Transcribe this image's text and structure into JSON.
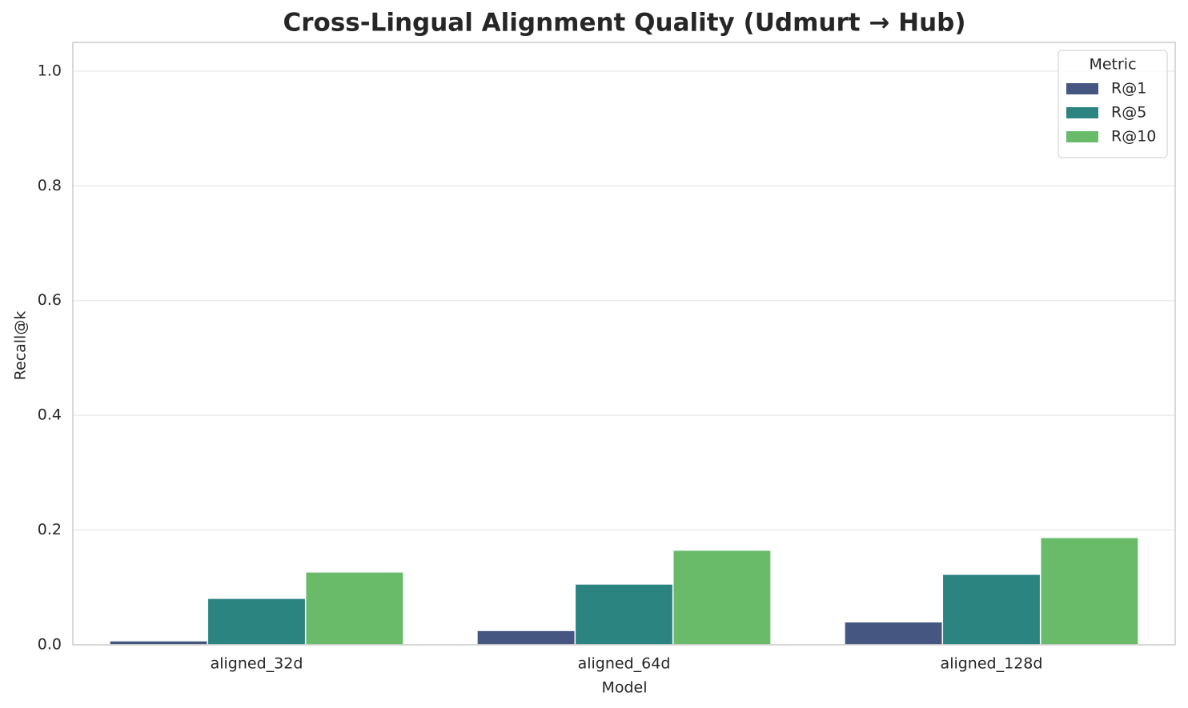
{
  "chart_data": {
    "type": "bar",
    "title": "Cross-Lingual Alignment Quality (Udmurt → Hub)",
    "x_label": "Model",
    "y_label": "Recall@k",
    "categories": [
      "aligned_32d",
      "aligned_64d",
      "aligned_128d"
    ],
    "series": [
      {
        "name": "R@1",
        "color": "#455681",
        "values": [
          0.007,
          0.025,
          0.04
        ]
      },
      {
        "name": "R@5",
        "color": "#2c8481",
        "values": [
          0.081,
          0.106,
          0.123
        ]
      },
      {
        "name": "R@10",
        "color": "#69bb6a",
        "values": [
          0.127,
          0.165,
          0.187
        ]
      }
    ],
    "legend_title": "Metric",
    "legend_position": "upper right",
    "ylim": [
      0,
      1.05
    ],
    "yticks": [
      {
        "value": 0,
        "label": "0.0"
      },
      {
        "value": 0.2,
        "label": "0.2"
      },
      {
        "value": 0.4,
        "label": "0.4"
      },
      {
        "value": 0.6,
        "label": "0.6"
      },
      {
        "value": 0.8,
        "label": "0.8"
      },
      {
        "value": 1,
        "label": "1.0"
      }
    ],
    "grid": true
  }
}
